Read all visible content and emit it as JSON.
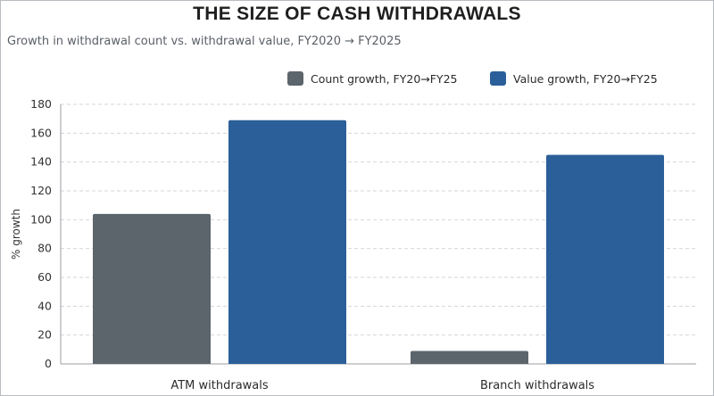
{
  "chart_data": {
    "type": "bar",
    "title": "THE SIZE OF CASH WITHDRAWALS",
    "subtitle": "Growth in withdrawal count vs. withdrawal value, FY2020 → FY2025",
    "categories": [
      "ATM withdrawals",
      "Branch withdrawals"
    ],
    "series": [
      {
        "name": "Count growth, FY20→FY25",
        "values": [
          104,
          9
        ],
        "color": "#5c646c"
      },
      {
        "name": "Value growth, FY20→FY25",
        "values": [
          169,
          145
        ],
        "color": "#2b5f99"
      }
    ],
    "xlabel": "",
    "ylabel": "% growth",
    "ylim": [
      0,
      180
    ],
    "yticks": [
      0,
      20,
      40,
      60,
      80,
      100,
      120,
      140,
      160,
      180
    ],
    "grid": true,
    "legend_position": "top-right"
  }
}
